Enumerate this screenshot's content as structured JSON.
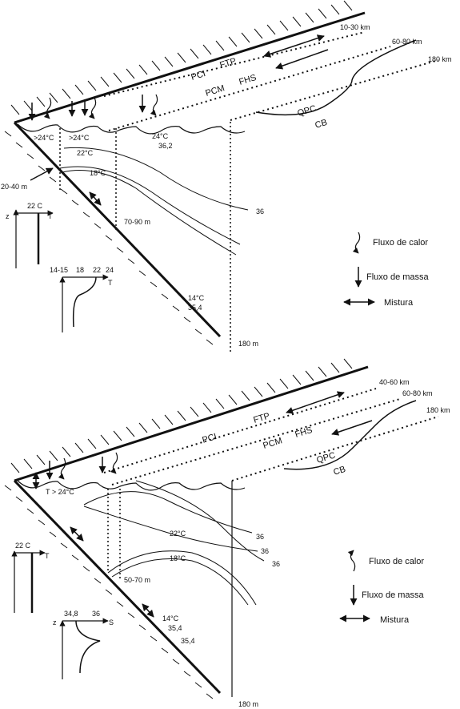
{
  "panel_top": {
    "distances": [
      "10-30 km",
      "60-80 km",
      "180 km"
    ],
    "zones": {
      "pci": "PCI",
      "ftp": "FTP",
      "pcm": "PCM",
      "fhs": "FHS",
      "qpc": "QPC",
      "cb": "CB"
    },
    "temps": {
      "t1": ">24°C",
      "t2": ">24°C",
      "t3": "24°C",
      "s3": "36,2",
      "t22": "22°C",
      "t18": "18°C",
      "t14": "14°C",
      "s35": "35,4"
    },
    "depths": {
      "d2040": "20-40 m",
      "d7090": "70-90 m",
      "d180": "180 m"
    },
    "iso36": "36",
    "profile_t": {
      "val": "22 C",
      "z": "z",
      "axis": "T"
    },
    "profile_t2": {
      "ticks": [
        "14-15",
        "18",
        "22",
        "24"
      ],
      "axis": "T"
    }
  },
  "legend_top": {
    "heat": "Fluxo de calor",
    "mass": "Fluxo de massa",
    "mix": "Mistura"
  },
  "panel_bottom": {
    "distances": [
      "40-60 km",
      "60-80 km",
      "180 km"
    ],
    "zones": {
      "pci": "PCI",
      "ftp": "FTP",
      "pcm": "PCM",
      "fhs": "FHS",
      "qpc": "QPC",
      "cb": "CB"
    },
    "temps": {
      "tsurf": "T > 24°C",
      "t22": "22°C",
      "t18": "18°C",
      "t14": "14°C",
      "s1": "35,4",
      "s2": "35,4"
    },
    "iso36": [
      "36",
      "36",
      "36"
    ],
    "depths": {
      "d5070": "50-70 m",
      "d180": "180 m"
    },
    "profile_t": {
      "val": "22 C",
      "axis": "T"
    },
    "profile_s": {
      "ticks": [
        "34,8",
        "36"
      ],
      "z": "z",
      "axis": "S"
    }
  },
  "legend_bottom": {
    "heat": "Fluxo de calor",
    "mass": "Fluxo de massa",
    "mix": "Mistura"
  }
}
